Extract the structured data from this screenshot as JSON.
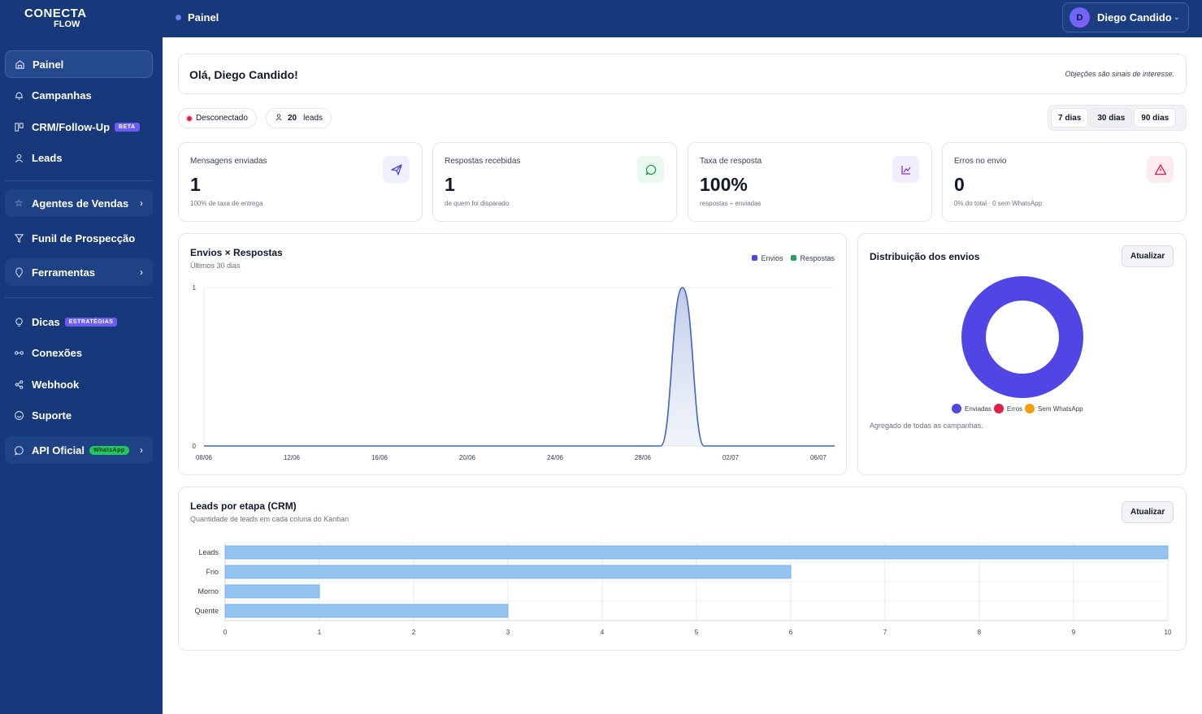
{
  "app": {
    "logo_line1": "CONECTA",
    "logo_line2": "FLOW"
  },
  "sidebar": {
    "items": [
      {
        "label": "Painel",
        "icon": "home-icon"
      },
      {
        "label": "Campanhas",
        "icon": "bell-icon"
      },
      {
        "label": "CRM/Follow-Up",
        "icon": "kanban-icon",
        "badge": "BETA"
      },
      {
        "label": "Leads",
        "icon": "user-icon"
      },
      {
        "label": "Agentes de Vendas",
        "icon": "star-icon"
      },
      {
        "label": "Funil de Prospecção",
        "icon": "filter-icon"
      },
      {
        "label": "Ferramentas",
        "icon": "pin-icon"
      },
      {
        "label": "Dicas",
        "icon": "lightbulb-icon",
        "badge": "ESTRATÉGIAS"
      },
      {
        "label": "Conexões",
        "icon": "link-icon"
      },
      {
        "label": "Webhook",
        "icon": "webhook-icon"
      },
      {
        "label": "Suporte",
        "icon": "support-icon"
      },
      {
        "label": "API Oficial",
        "icon": "chat-icon",
        "badge": "WhatsApp"
      }
    ]
  },
  "topbar": {
    "title": "Painel",
    "user_name": "Diego Candido",
    "user_initial": "D"
  },
  "greeting": {
    "text": "Olá, Diego Candido!",
    "quote": "Objeções são sinais de interesse."
  },
  "status": {
    "connection": "Desconectado",
    "leads_count": "20",
    "leads_label": "leads"
  },
  "range": {
    "options": [
      "7 dias",
      "30 dias",
      "90 dias"
    ],
    "selected": "30 dias"
  },
  "kpis": [
    {
      "label": "Mensagens enviadas",
      "value": "1",
      "sub": "100% de taxa de entrega",
      "icon": "send-icon",
      "accent": "#4f46e5"
    },
    {
      "label": "Respostas recebidas",
      "value": "1",
      "sub": "de quem foi disparado",
      "icon": "message-icon",
      "accent": "#16a34a"
    },
    {
      "label": "Taxa de resposta",
      "value": "100%",
      "sub": "respostas ÷ enviadas",
      "icon": "trend-icon",
      "accent": "#7c3aed"
    },
    {
      "label": "Erros no envio",
      "value": "0",
      "sub": "0% do total · 0 sem WhatsApp",
      "icon": "alert-icon",
      "accent": "#e11d48"
    }
  ],
  "line_chart": {
    "title": "Envios × Respostas",
    "subtitle": "Últimos 30 dias",
    "legend": [
      "Envios",
      "Respostas"
    ]
  },
  "donut": {
    "title": "Distribuição dos envios",
    "button": "Atualizar",
    "legend": [
      "Enviadas",
      "Erros",
      "Sem WhatsApp"
    ],
    "note": "Agregado de todas as campanhas."
  },
  "crm": {
    "title": "Leads por etapa (CRM)",
    "subtitle": "Quantidade de leads em cada coluna do Kanban",
    "button": "Atualizar"
  },
  "chart_data": [
    {
      "type": "area",
      "title": "Envios × Respostas",
      "subtitle": "Últimos 30 dias",
      "x_ticks": [
        "08/06",
        "12/06",
        "16/06",
        "20/06",
        "24/06",
        "28/06",
        "02/07",
        "06/07"
      ],
      "ylim": [
        0,
        1
      ],
      "y_ticks": [
        "0",
        "1"
      ],
      "series": [
        {
          "name": "Envios",
          "color": "#4f46e5",
          "points": [
            [
              "2025-06-08",
              0
            ],
            [
              "2025-06-29",
              0
            ],
            [
              "2025-06-30",
              1
            ],
            [
              "2025-07-01",
              0
            ],
            [
              "2025-07-07",
              0
            ]
          ]
        },
        {
          "name": "Respostas",
          "color": "#22a35a",
          "points": [
            [
              "2025-06-08",
              0
            ],
            [
              "2025-06-29",
              0
            ],
            [
              "2025-06-30",
              1
            ],
            [
              "2025-07-01",
              0
            ],
            [
              "2025-07-07",
              0
            ]
          ]
        }
      ]
    },
    {
      "type": "pie",
      "title": "Distribuição dos envios",
      "categories": [
        "Enviadas",
        "Erros",
        "Sem WhatsApp"
      ],
      "values": [
        1,
        0,
        0
      ],
      "colors": [
        "#4f46e5",
        "#e11d48",
        "#f59e0b"
      ]
    },
    {
      "type": "bar",
      "orientation": "horizontal",
      "title": "Leads por etapa (CRM)",
      "categories": [
        "Leads",
        "Frio",
        "Morno",
        "Quente"
      ],
      "values": [
        10,
        6,
        1,
        3
      ],
      "xlim": [
        0,
        10
      ],
      "x_ticks": [
        "0",
        "1",
        "2",
        "3",
        "4",
        "5",
        "6",
        "7",
        "8",
        "9",
        "10"
      ],
      "color": "#93c5f3"
    }
  ]
}
